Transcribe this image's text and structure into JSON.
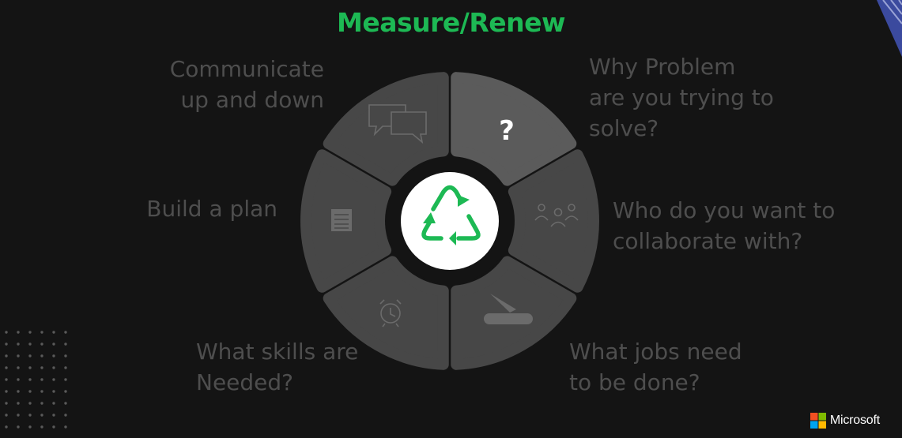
{
  "title": {
    "text": "Measure/Renew",
    "color": "#1db954"
  },
  "segments": [
    {
      "id": "problem",
      "icon": "question-mark-icon",
      "glyph": "?",
      "label": "Why Problem\nare you trying to\nsolve?",
      "highlighted": true
    },
    {
      "id": "collaborate",
      "icon": "people-icon",
      "label": "Who do you want to\ncollaborate with?",
      "highlighted": false
    },
    {
      "id": "jobs",
      "icon": "pocket-knife-icon",
      "label": "What jobs need\nto be done?",
      "highlighted": false
    },
    {
      "id": "skills",
      "icon": "alarm-clock-icon",
      "label": "What skills are\nNeeded?",
      "highlighted": false
    },
    {
      "id": "plan",
      "icon": "notepad-icon",
      "label": "Build a plan",
      "highlighted": false
    },
    {
      "id": "communicate",
      "icon": "chat-bubbles-icon",
      "label": "Communicate\nup and down",
      "highlighted": false
    }
  ],
  "center": {
    "icon": "recycle-icon",
    "color": "#1db954"
  },
  "colors": {
    "background": "#141414",
    "segment": "#474747",
    "segment_highlight": "#5b5b5b",
    "icon": "#6b6b6b",
    "label": "#4e4e4e",
    "accent_blue": "#3b4a9e"
  },
  "brand": {
    "text": "Microsoft",
    "logo_colors": [
      "#f25022",
      "#7fba00",
      "#00a4ef",
      "#ffb900"
    ]
  }
}
